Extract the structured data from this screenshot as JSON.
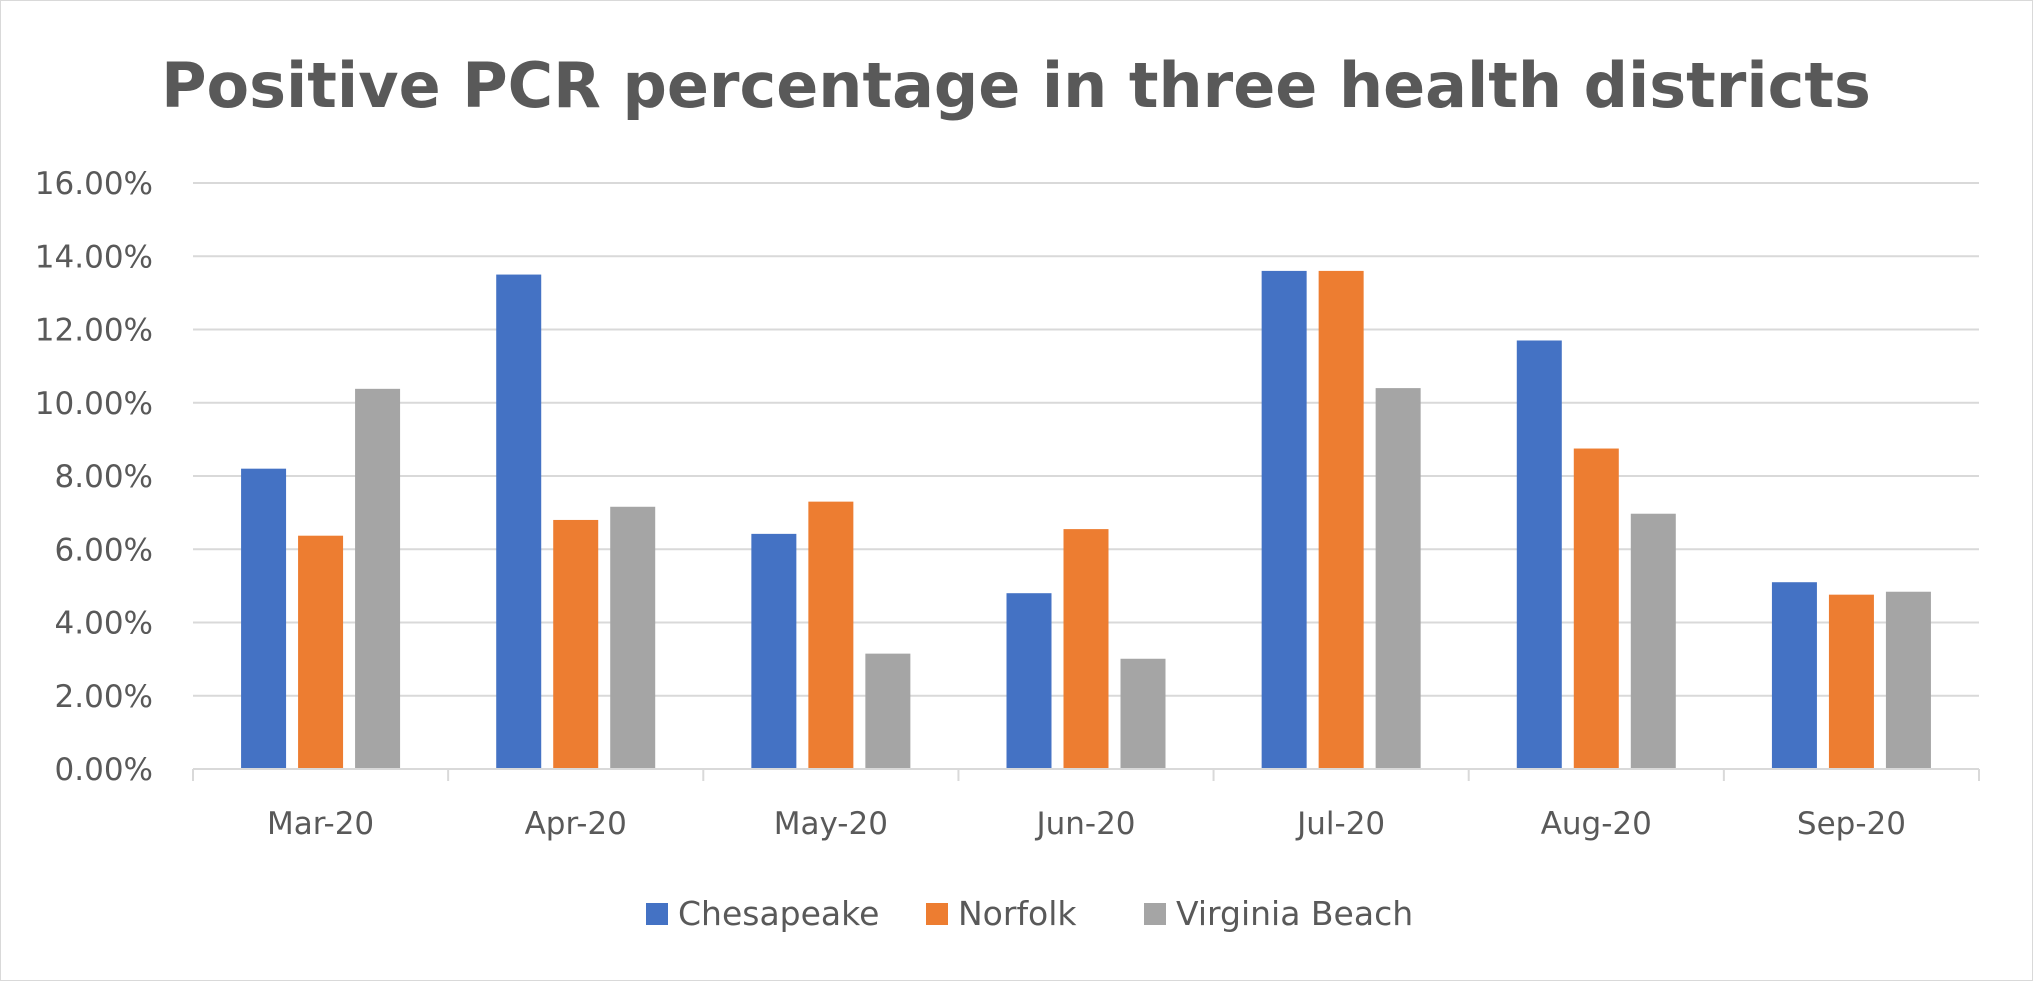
{
  "chart_data": {
    "type": "bar",
    "title": "Positive PCR percentage in three health districts",
    "xlabel": "",
    "ylabel": "",
    "categories": [
      "Mar-20",
      "Apr-20",
      "May-20",
      "Jun-20",
      "Jul-20",
      "Aug-20",
      "Sep-20"
    ],
    "series": [
      {
        "name": "Chesapeake",
        "color": "#4472c4",
        "values": [
          8.2,
          13.5,
          6.42,
          4.8,
          13.6,
          11.7,
          5.1
        ]
      },
      {
        "name": "Norfolk",
        "color": "#ed7d31",
        "values": [
          6.37,
          6.8,
          7.3,
          6.55,
          13.6,
          8.75,
          4.76
        ]
      },
      {
        "name": "Virginia Beach",
        "color": "#a5a5a5",
        "values": [
          10.38,
          7.16,
          3.15,
          3.01,
          10.4,
          6.97,
          4.84
        ]
      }
    ],
    "ylim": [
      0,
      16
    ],
    "yticks": [
      "0.00%",
      "2.00%",
      "4.00%",
      "6.00%",
      "8.00%",
      "10.00%",
      "12.00%",
      "14.00%",
      "16.00%"
    ],
    "grid": true,
    "legend_position": "bottom"
  }
}
